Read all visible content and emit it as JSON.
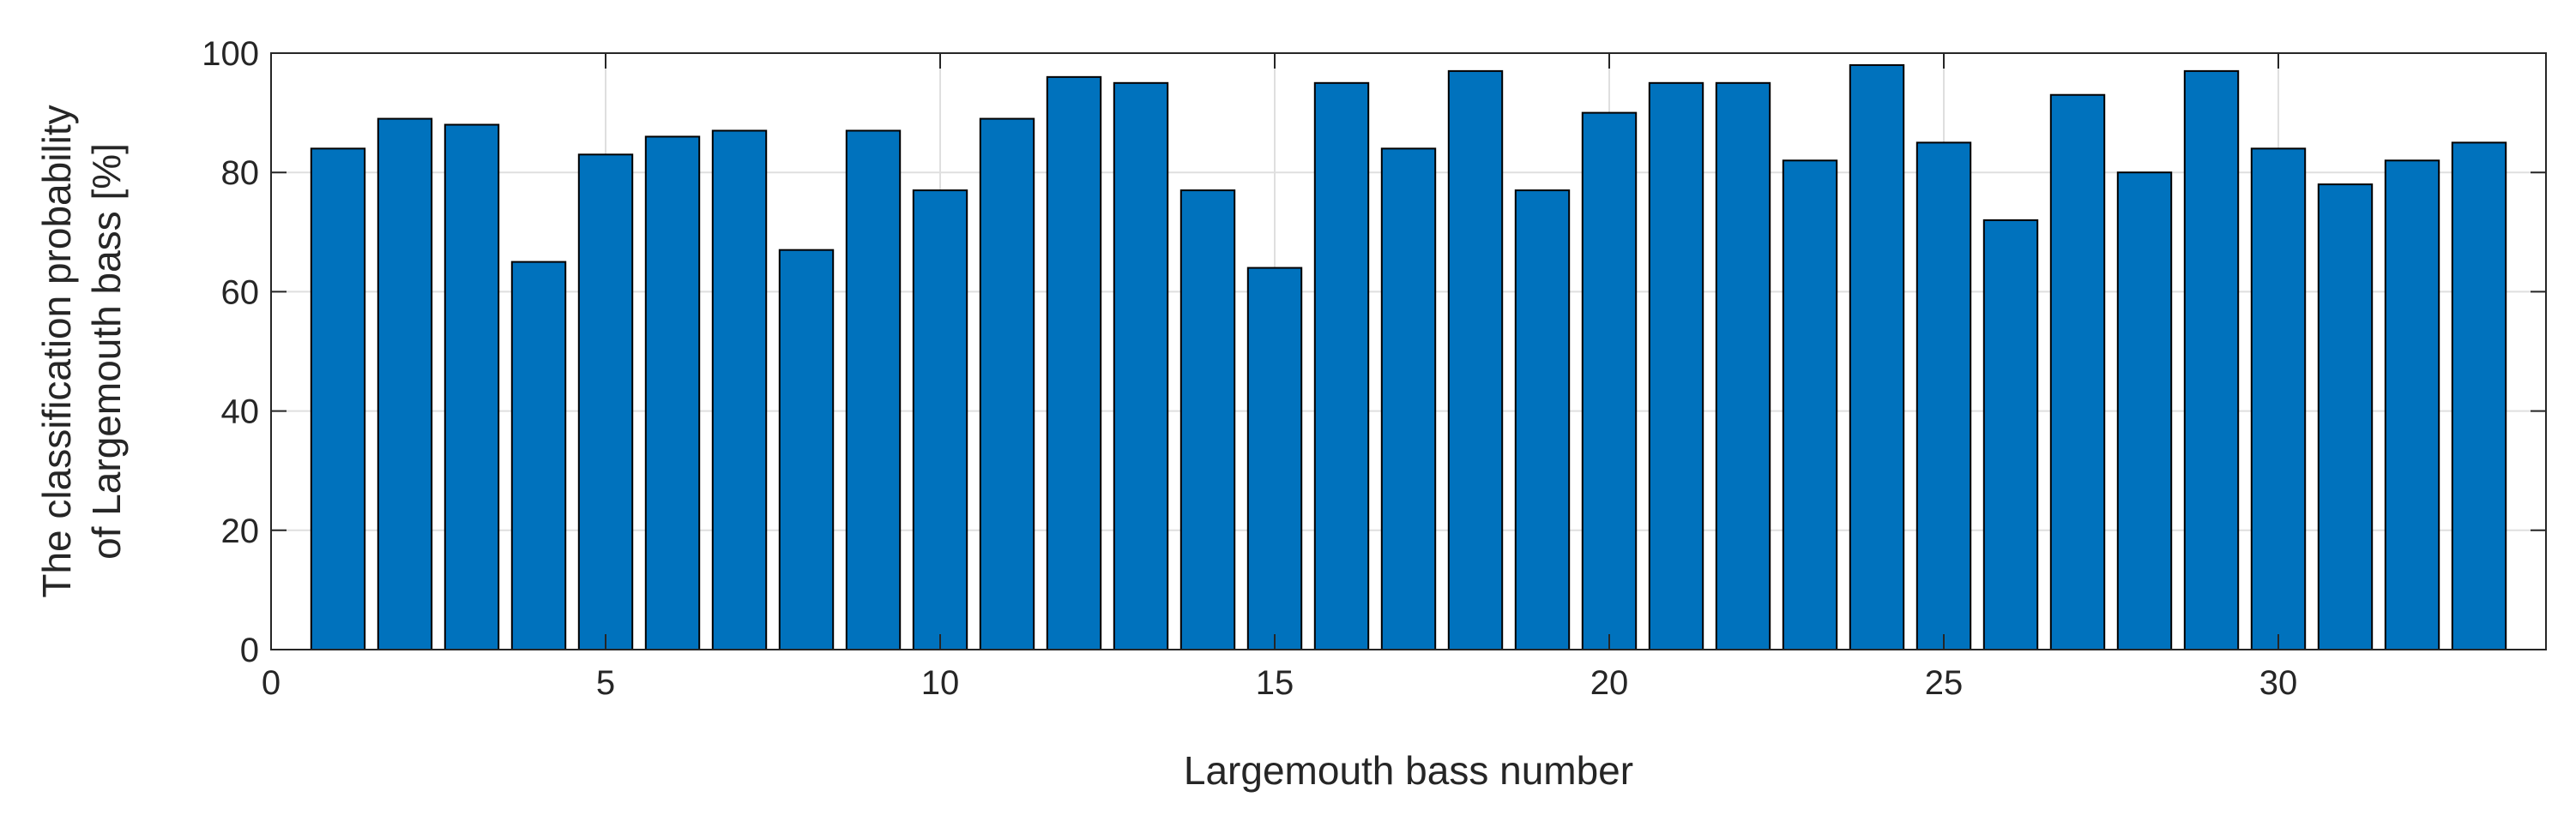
{
  "chart_data": {
    "type": "bar",
    "xlabel": "Largemouth bass number",
    "ylabel_lines": [
      "The classification probability",
      "of Largemouth bass [%]"
    ],
    "x": [
      1,
      2,
      3,
      4,
      5,
      6,
      7,
      8,
      9,
      10,
      11,
      12,
      13,
      14,
      15,
      16,
      17,
      18,
      19,
      20,
      21,
      22,
      23,
      24,
      25,
      26,
      27,
      28,
      29,
      30,
      31,
      32,
      33
    ],
    "values": [
      84,
      89,
      88,
      65,
      83,
      86,
      87,
      67,
      87,
      77,
      89,
      96,
      95,
      77,
      64,
      95,
      84,
      97,
      77,
      90,
      95,
      95,
      82,
      98,
      85,
      72,
      93,
      80,
      97,
      84,
      78,
      82,
      85
    ],
    "xlim": [
      0,
      34
    ],
    "ylim": [
      0,
      100
    ],
    "xticks": [
      0,
      5,
      10,
      15,
      20,
      25,
      30
    ],
    "yticks": [
      0,
      20,
      40,
      60,
      80,
      100
    ],
    "grid": true,
    "bar_color": "#0072BD",
    "edge_color": "#000000"
  }
}
